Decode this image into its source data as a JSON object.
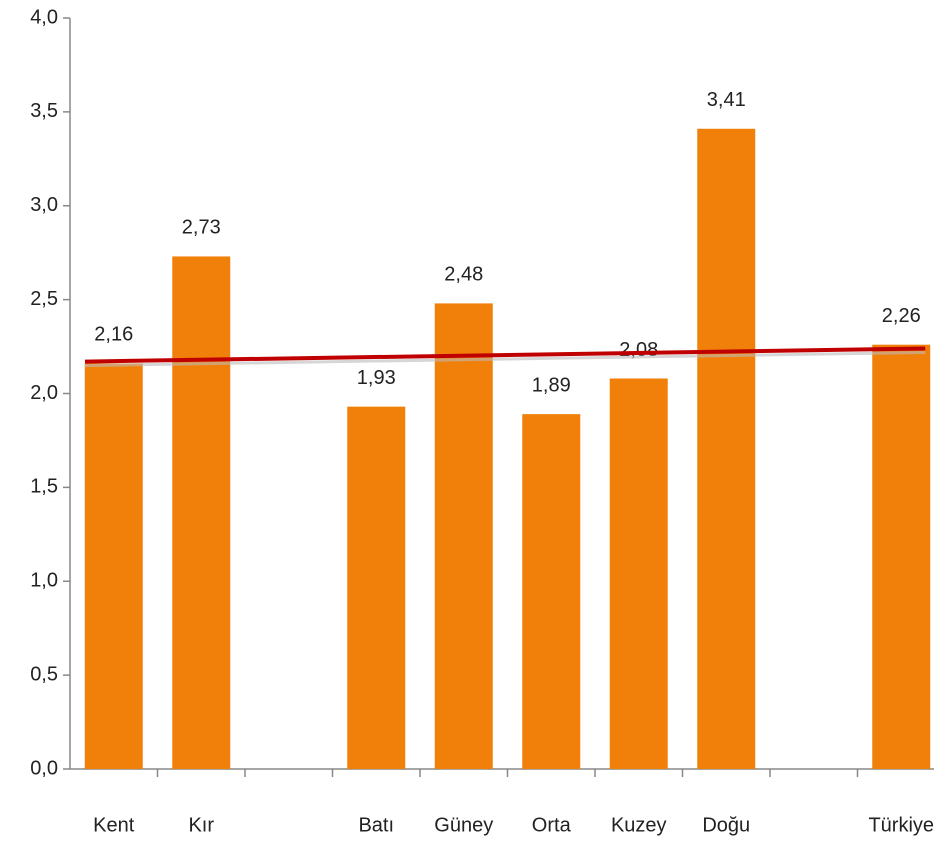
{
  "chart_data": {
    "type": "bar",
    "categories": [
      "Kent",
      "Kır",
      null,
      "Batı",
      "Güney",
      "Orta",
      "Kuzey",
      "Doğu",
      null,
      "Türkiye"
    ],
    "values": [
      2.16,
      2.73,
      null,
      1.93,
      2.48,
      1.89,
      2.08,
      3.41,
      null,
      2.26
    ],
    "value_labels": [
      "2,16",
      "2,73",
      null,
      "1,93",
      "2,48",
      "1,89",
      "2,08",
      "3,41",
      null,
      "2,26"
    ],
    "color": "#f0800a",
    "ylim": [
      0,
      4
    ],
    "yticks": [
      {
        "value": 0,
        "label": "0,0"
      },
      {
        "value": 0.5,
        "label": "0,5"
      },
      {
        "value": 1,
        "label": "1,0"
      },
      {
        "value": 1.5,
        "label": "1,5"
      },
      {
        "value": 2,
        "label": "2,0"
      },
      {
        "value": 2.5,
        "label": "2,5"
      },
      {
        "value": 3,
        "label": "3,0"
      },
      {
        "value": 3.5,
        "label": "3,5"
      },
      {
        "value": 4,
        "label": "4,0"
      }
    ],
    "grid": false,
    "reference_line": {
      "color": "#c00000",
      "values": [
        2.17,
        2.24
      ]
    }
  }
}
